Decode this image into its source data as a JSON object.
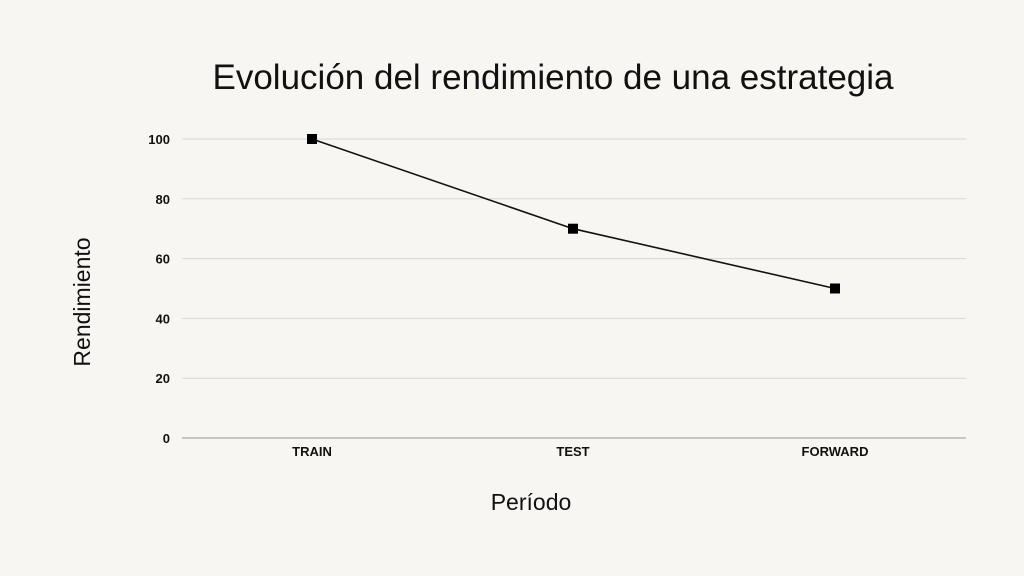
{
  "colors": {
    "background": "#f7f6f2",
    "text": "#111111",
    "series": "#000000",
    "grid": "#d9d7d2"
  },
  "chart_data": {
    "type": "line",
    "title": "Evolución del rendimiento de una estrategia",
    "xlabel": "Período",
    "ylabel": "Rendimiento",
    "categories": [
      "TRAIN",
      "TEST",
      "FORWARD"
    ],
    "values": [
      100,
      70,
      50
    ],
    "ylim": [
      0,
      100
    ],
    "yticks": [
      0,
      20,
      40,
      60,
      80,
      100
    ],
    "grid": true,
    "marker": "square",
    "legend": false
  }
}
